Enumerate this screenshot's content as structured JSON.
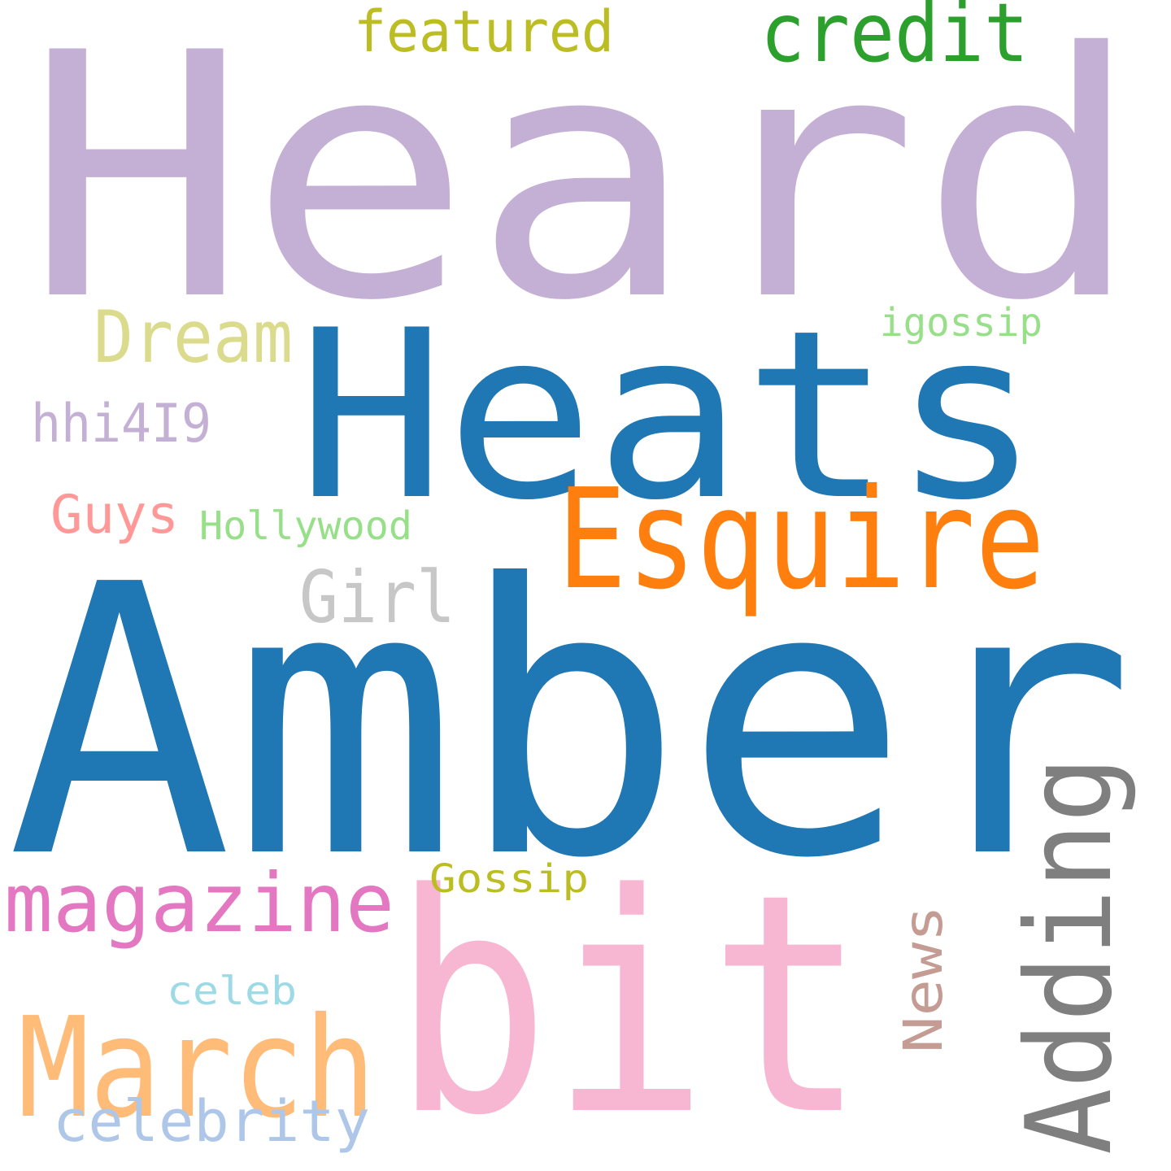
{
  "words": [
    {
      "text": "Heard",
      "color": "#c5b0d5"
    },
    {
      "text": "Amber",
      "color": "#1f77b4"
    },
    {
      "text": "Heats",
      "color": "#1f77b4"
    },
    {
      "text": "bit",
      "color": "#f7b6d2"
    },
    {
      "text": "Esquire",
      "color": "#ff7f0e"
    },
    {
      "text": "Adding",
      "color": "#7f7f7f"
    },
    {
      "text": "March",
      "color": "#ffbb78"
    },
    {
      "text": "credit",
      "color": "#2ca02c"
    },
    {
      "text": "magazine",
      "color": "#e377c2"
    },
    {
      "text": "Dream",
      "color": "#dbdb8d"
    },
    {
      "text": "featured",
      "color": "#bcbd22"
    },
    {
      "text": "Girl",
      "color": "#c7c7c7"
    },
    {
      "text": "celebrity",
      "color": "#aec7e8"
    },
    {
      "text": "hhi4I9",
      "color": "#c5b0d5"
    },
    {
      "text": "Guys",
      "color": "#ff9896"
    },
    {
      "text": "News",
      "color": "#c49c94"
    },
    {
      "text": "Hollywood",
      "color": "#98df8a"
    },
    {
      "text": "igossip",
      "color": "#98df8a"
    },
    {
      "text": "Gossip",
      "color": "#bcbd22"
    },
    {
      "text": "celeb",
      "color": "#9edae5"
    }
  ]
}
